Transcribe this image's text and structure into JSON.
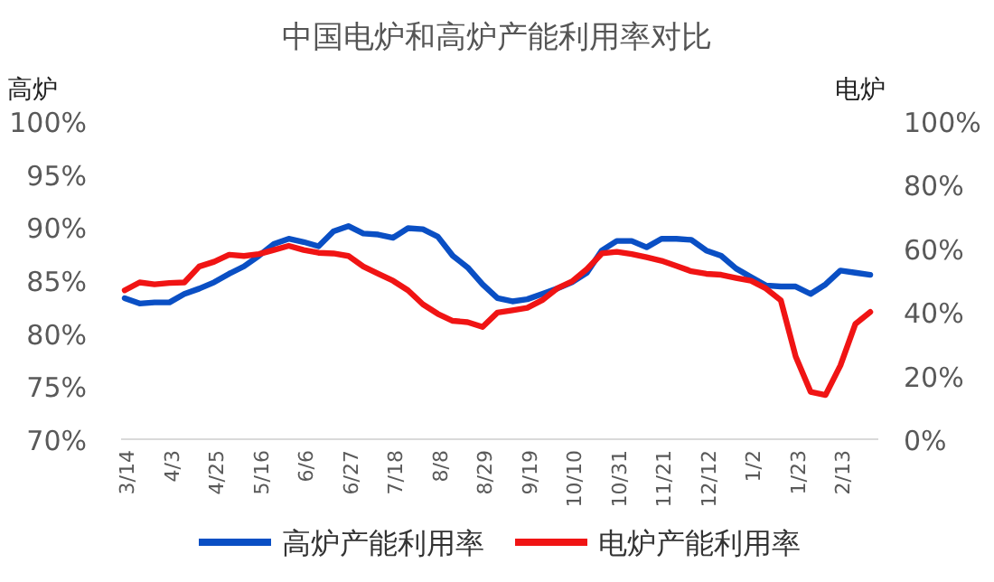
{
  "chart_data": {
    "type": "line",
    "title": "中国电炉和高炉产能利用率对比",
    "ylabel": "高炉",
    "y2label": "电炉",
    "categories": [
      "3/14",
      null,
      null,
      "4/3",
      null,
      null,
      "4/25",
      null,
      null,
      "5/16",
      null,
      null,
      "6/6",
      null,
      null,
      "6/27",
      null,
      null,
      "7/18",
      null,
      null,
      "8/8",
      null,
      null,
      "8/29",
      null,
      null,
      "9/19",
      null,
      null,
      "10/10",
      null,
      null,
      "10/31",
      null,
      null,
      "11/21",
      null,
      null,
      "12/12",
      null,
      null,
      "1/2",
      null,
      null,
      "1/23",
      null,
      null,
      "2/13",
      null,
      null
    ],
    "series": [
      {
        "name": "高炉产能利用率",
        "color": "#0a4fc4",
        "values": [
          83.3,
          82.8,
          82.9,
          82.9,
          83.7,
          84.2,
          84.8,
          85.6,
          86.3,
          87.3,
          88.4,
          88.9,
          88.6,
          88.2,
          89.6,
          90.1,
          89.4,
          89.3,
          89.0,
          89.9,
          89.8,
          89.1,
          87.3,
          86.2,
          84.6,
          83.3,
          83.0,
          83.2,
          83.7,
          84.2,
          84.8,
          85.7,
          87.8,
          88.7,
          88.7,
          88.1,
          88.9,
          88.9,
          88.8,
          87.8,
          87.3,
          86.1,
          85.3,
          84.5,
          84.4,
          84.4,
          83.7,
          84.6,
          85.9,
          85.7,
          85.5
        ]
      },
      {
        "name": "电炉产能利用率",
        "color": "#f01414",
        "axis": "y2",
        "values": [
          46.8,
          49.3,
          48.7,
          49.1,
          49.3,
          54.3,
          55.8,
          58.0,
          57.6,
          58.2,
          59.5,
          60.8,
          59.5,
          58.6,
          58.4,
          57.6,
          54.3,
          52.0,
          49.8,
          46.8,
          42.4,
          39.4,
          37.2,
          36.8,
          35.3,
          39.8,
          40.5,
          41.3,
          43.7,
          47.4,
          49.6,
          53.5,
          58.4,
          58.9,
          58.2,
          57.2,
          56.1,
          54.5,
          52.8,
          52.0,
          51.7,
          50.7,
          49.8,
          47.4,
          43.7,
          26.0,
          14.9,
          13.9,
          23.2,
          36.2,
          40.0
        ]
      }
    ],
    "ylim": [
      70,
      100
    ],
    "yticks": [
      {
        "value": 70,
        "label": "70%"
      },
      {
        "value": 75,
        "label": "75%"
      },
      {
        "value": 80,
        "label": "80%"
      },
      {
        "value": 85,
        "label": "85%"
      },
      {
        "value": 90,
        "label": "90%"
      },
      {
        "value": 95,
        "label": "95%"
      },
      {
        "value": 100,
        "label": "100%"
      }
    ],
    "y2lim": [
      0,
      100
    ],
    "y2ticks": [
      {
        "value": 0,
        "label": "0%"
      },
      {
        "value": 20,
        "label": "20%"
      },
      {
        "value": 40,
        "label": "40%"
      },
      {
        "value": 60,
        "label": "60%"
      },
      {
        "value": 80,
        "label": "80%"
      },
      {
        "value": 100,
        "label": "100%"
      }
    ],
    "legend": "bottom",
    "marker": "none",
    "line_style": "solid"
  }
}
